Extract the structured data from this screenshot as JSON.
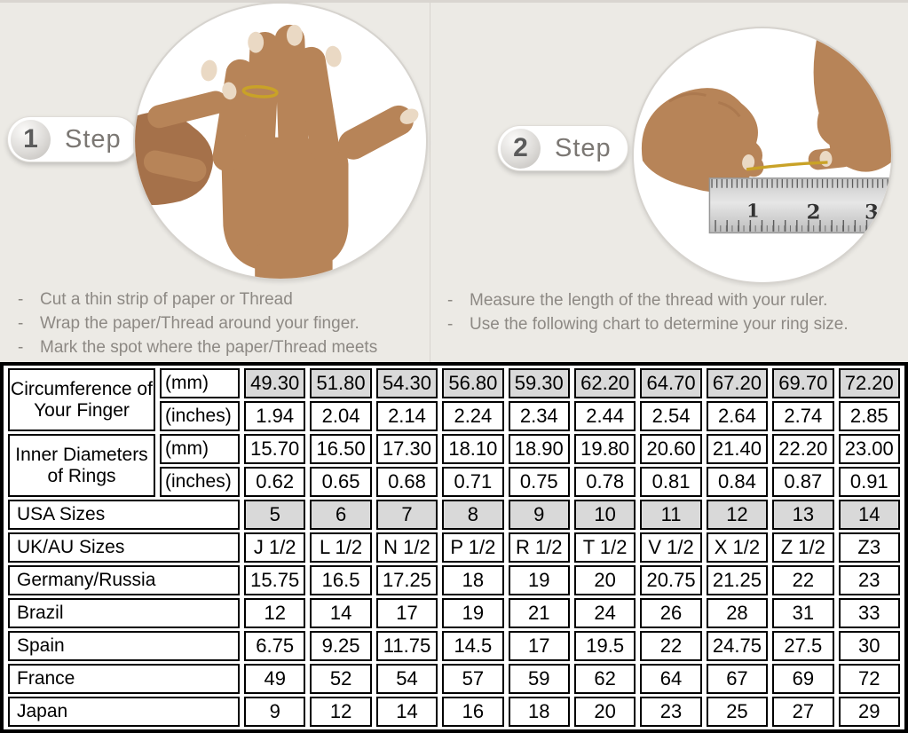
{
  "ui": {
    "dash": "-"
  },
  "steps": [
    {
      "number": "1",
      "label": "Step",
      "instructions": [
        "Cut a thin strip of paper or Thread",
        "Wrap the paper/Thread around your finger.",
        "Mark the spot where the paper/Thread meets"
      ]
    },
    {
      "number": "2",
      "label": "Step",
      "instructions": [
        "Measure the length of the thread with your ruler.",
        "Use the following chart to determine your ring size."
      ]
    }
  ],
  "colors": {
    "shaded_cell": "#d9d9d9",
    "gold_thread": "#c9a227",
    "skin_tone": "#b78458",
    "page_background": "#eceae5"
  },
  "size_table": {
    "row_groups": [
      {
        "label": "Circumference of Your Finger",
        "sub_rows": [
          {
            "unit": "(mm)",
            "shaded": true,
            "values": [
              "49.30",
              "51.80",
              "54.30",
              "56.80",
              "59.30",
              "62.20",
              "64.70",
              "67.20",
              "69.70",
              "72.20"
            ]
          },
          {
            "unit": "(inches)",
            "shaded": false,
            "values": [
              "1.94",
              "2.04",
              "2.14",
              "2.24",
              "2.34",
              "2.44",
              "2.54",
              "2.64",
              "2.74",
              "2.85"
            ]
          }
        ]
      },
      {
        "label": "Inner Diameters of Rings",
        "sub_rows": [
          {
            "unit": "(mm)",
            "shaded": false,
            "values": [
              "15.70",
              "16.50",
              "17.30",
              "18.10",
              "18.90",
              "19.80",
              "20.60",
              "21.40",
              "22.20",
              "23.00"
            ]
          },
          {
            "unit": "(inches)",
            "shaded": false,
            "values": [
              "0.62",
              "0.65",
              "0.68",
              "0.71",
              "0.75",
              "0.78",
              "0.81",
              "0.84",
              "0.87",
              "0.91"
            ]
          }
        ]
      }
    ],
    "rows": [
      {
        "label": "USA Sizes",
        "shaded": true,
        "values": [
          "5",
          "6",
          "7",
          "8",
          "9",
          "10",
          "11",
          "12",
          "13",
          "14"
        ]
      },
      {
        "label": "UK/AU Sizes",
        "shaded": false,
        "values": [
          "J 1/2",
          "L 1/2",
          "N 1/2",
          "P 1/2",
          "R 1/2",
          "T 1/2",
          "V 1/2",
          "X 1/2",
          "Z 1/2",
          "Z3"
        ]
      },
      {
        "label": "Germany/Russia",
        "shaded": false,
        "values": [
          "15.75",
          "16.5",
          "17.25",
          "18",
          "19",
          "20",
          "20.75",
          "21.25",
          "22",
          "23"
        ]
      },
      {
        "label": "Brazil",
        "shaded": false,
        "values": [
          "12",
          "14",
          "17",
          "19",
          "21",
          "24",
          "26",
          "28",
          "31",
          "33"
        ]
      },
      {
        "label": "Spain",
        "shaded": false,
        "values": [
          "6.75",
          "9.25",
          "11.75",
          "14.5",
          "17",
          "19.5",
          "22",
          "24.75",
          "27.5",
          "30"
        ]
      },
      {
        "label": "France",
        "shaded": false,
        "values": [
          "49",
          "52",
          "54",
          "57",
          "59",
          "62",
          "64",
          "67",
          "69",
          "72"
        ]
      },
      {
        "label": "Japan",
        "shaded": false,
        "values": [
          "9",
          "12",
          "14",
          "16",
          "18",
          "20",
          "23",
          "25",
          "27",
          "29"
        ]
      }
    ]
  }
}
